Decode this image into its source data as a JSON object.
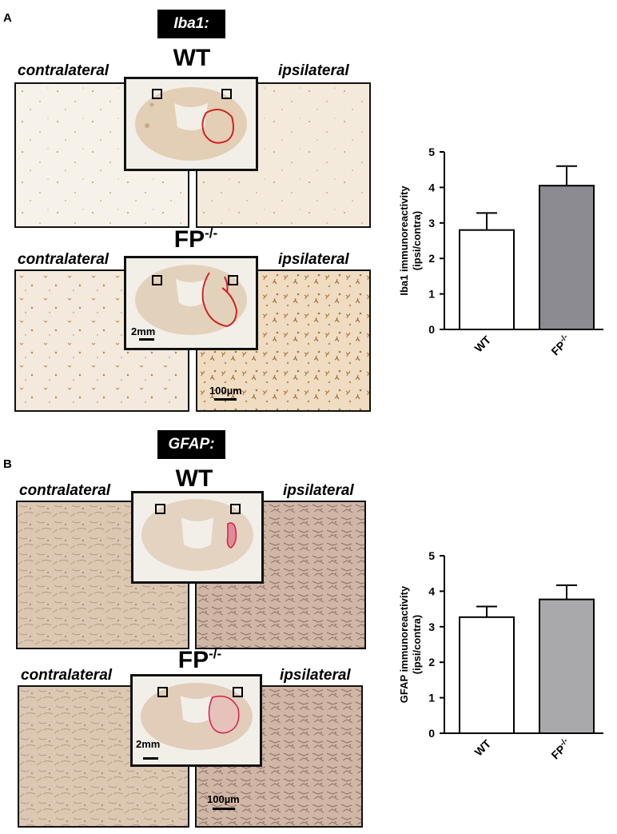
{
  "panel_a": {
    "letter": "A",
    "stain": "Iba1:",
    "wt_label": "WT",
    "fp_label_base": "FP",
    "fp_label_sup": "-/-",
    "contralateral": "contralateral",
    "ipsilateral": "ipsilateral",
    "scale_inset": "2mm",
    "scale_micro": "100µm"
  },
  "panel_b": {
    "letter": "B",
    "stain": "GFAP:",
    "wt_label": "WT",
    "fp_label_base": "FP",
    "fp_label_sup": "-/-",
    "contralateral": "contralateral",
    "ipsilateral": "ipsilateral",
    "scale_inset": "2mm",
    "scale_micro": "100µm"
  },
  "chart_data": [
    {
      "type": "bar",
      "categories": [
        "WT",
        "FP-/-"
      ],
      "values": [
        2.8,
        4.05
      ],
      "errors": [
        0.48,
        0.55
      ],
      "ylabel_line1": "Iba1 immunoreactivity",
      "ylabel_line2": "(ipsi/contra)",
      "ylim": [
        0,
        5
      ],
      "yticks": [
        "0",
        "1",
        "2",
        "3",
        "4",
        "5"
      ],
      "colors": [
        "#ffffff",
        "#8c8b91"
      ]
    },
    {
      "type": "bar",
      "categories": [
        "WT",
        "FP-/-"
      ],
      "values": [
        3.27,
        3.77
      ],
      "errors": [
        0.3,
        0.4
      ],
      "ylabel_line1": "GFAP immunoreactivity",
      "ylabel_line2": "(ipsi/contra)",
      "ylim": [
        0,
        5
      ],
      "yticks": [
        "0",
        "1",
        "2",
        "3",
        "4",
        "5"
      ],
      "colors": [
        "#ffffff",
        "#a9a9ac"
      ]
    }
  ]
}
